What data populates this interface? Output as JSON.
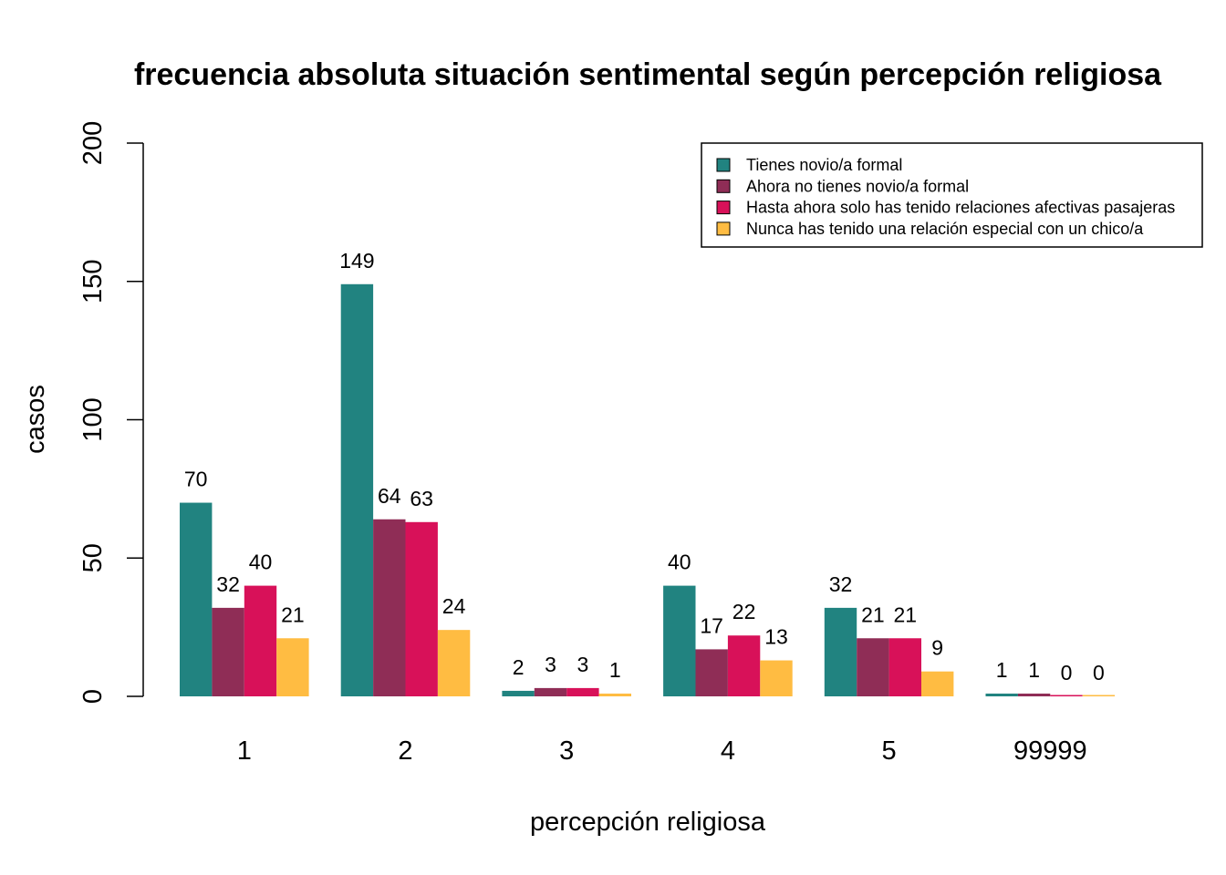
{
  "chart_data": {
    "type": "bar",
    "title": "frecuencia absoluta situación sentimental según percepción religiosa",
    "xlabel": "percepción religiosa",
    "ylabel": "casos",
    "ylim": [
      0,
      200
    ],
    "yticks": [
      0,
      50,
      100,
      150,
      200
    ],
    "categories": [
      "1",
      "2",
      "3",
      "4",
      "5",
      "99999"
    ],
    "series": [
      {
        "name": "Tienes novio/a formal",
        "color": "#218380",
        "values": [
          70,
          149,
          2,
          40,
          32,
          1
        ]
      },
      {
        "name": "Ahora no tienes novio/a formal",
        "color": "#8F2D56",
        "values": [
          32,
          64,
          3,
          17,
          21,
          1
        ]
      },
      {
        "name": "Hasta ahora solo has tenido relaciones afectivas pasajeras",
        "color": "#D81159",
        "values": [
          40,
          63,
          3,
          22,
          21,
          0
        ]
      },
      {
        "name": "Nunca has tenido una relación especial con un chico/a",
        "color": "#FFBC42",
        "values": [
          21,
          24,
          1,
          13,
          9,
          0
        ]
      }
    ],
    "legend_position": "top-right",
    "grid": false,
    "data_labels": true
  }
}
